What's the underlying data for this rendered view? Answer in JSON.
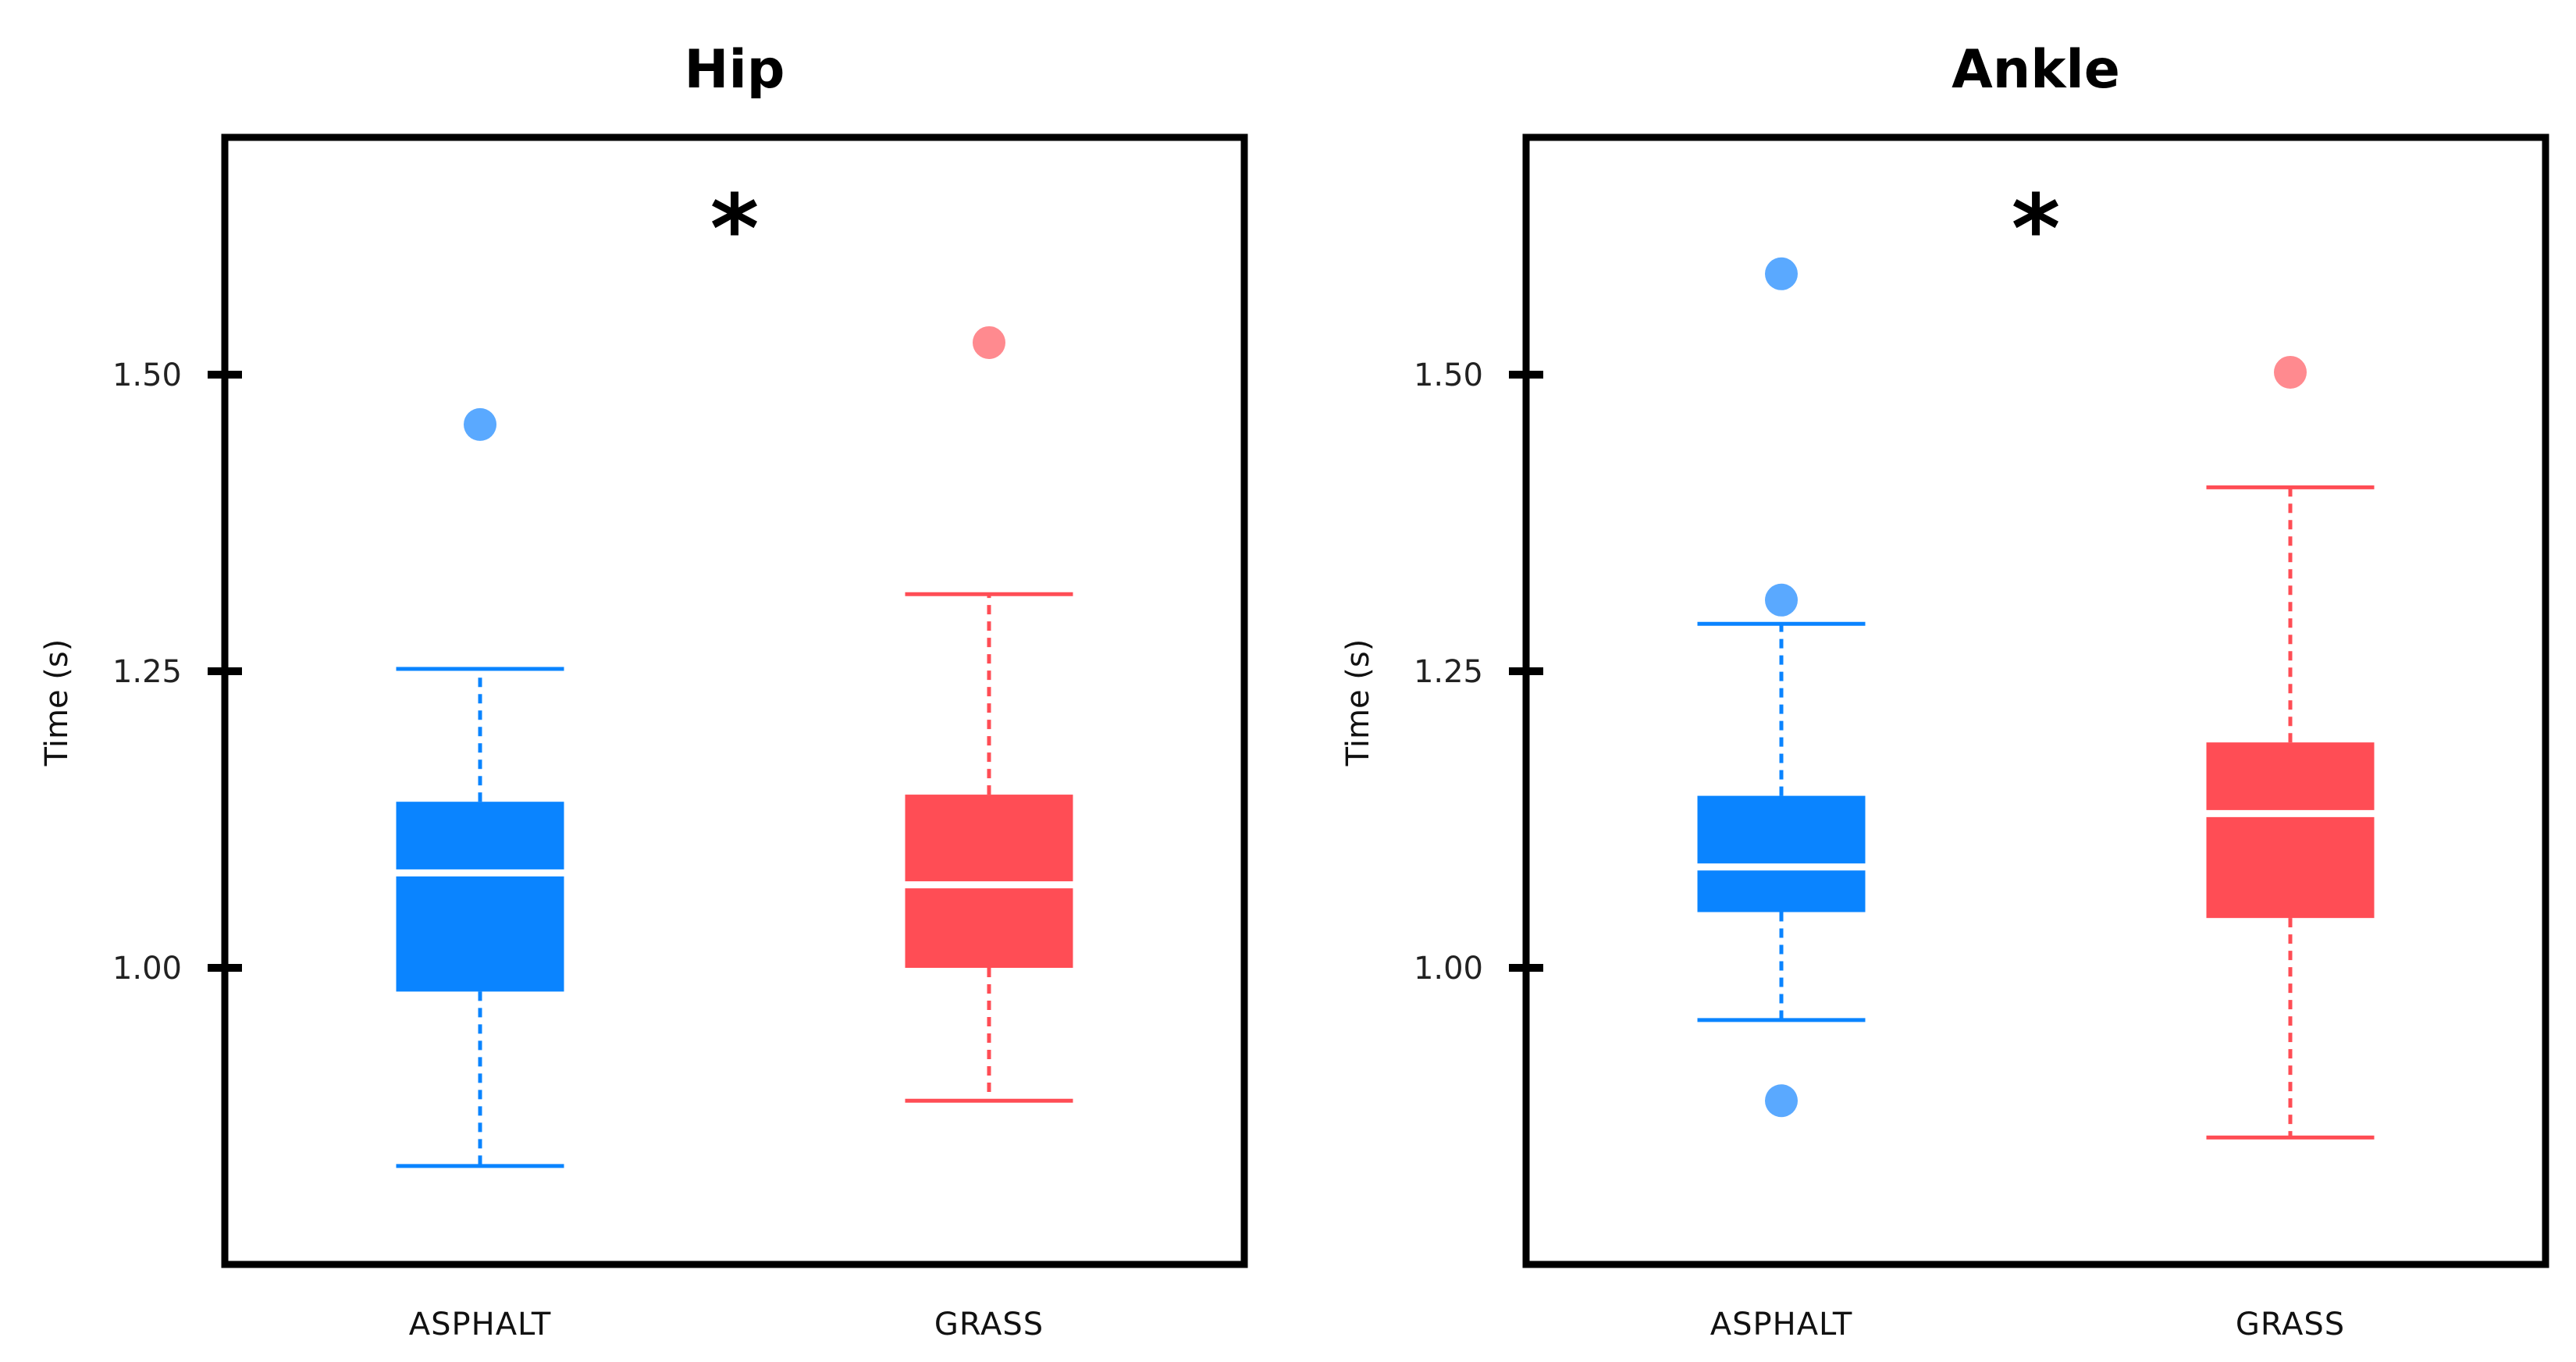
{
  "colors": {
    "ASPHALT": "#0a84ff",
    "GRASS": "#ff4d55",
    "outlier_ASPHALT": "#5aa9ff",
    "outlier_GRASS": "#ff8a8f",
    "frame": "#000000"
  },
  "chart_data": [
    {
      "type": "box",
      "title": "Hip",
      "ylabel": "Time (s)",
      "ylim": [
        0.75,
        1.7
      ],
      "yticks": [
        "1.00",
        "1.25",
        "1.50"
      ],
      "ytick_values": [
        1.0,
        1.25,
        1.5
      ],
      "significance": "*",
      "categories": [
        "ASPHALT",
        "GRASS"
      ],
      "boxes": [
        {
          "category": "ASPHALT",
          "whisker_low": 0.833,
          "q1": 0.98,
          "median": 1.08,
          "q3": 1.14,
          "whisker_high": 1.252,
          "outliers": [
            1.458
          ]
        },
        {
          "category": "GRASS",
          "whisker_low": 0.888,
          "q1": 1.0,
          "median": 1.07,
          "q3": 1.146,
          "whisker_high": 1.315,
          "outliers": [
            1.527
          ]
        }
      ],
      "grid": false
    },
    {
      "type": "box",
      "title": "Ankle",
      "ylabel": "Time (s)",
      "ylim": [
        0.75,
        1.7
      ],
      "yticks": [
        "1.00",
        "1.25",
        "1.50"
      ],
      "ytick_values": [
        1.0,
        1.25,
        1.5
      ],
      "significance": "*",
      "categories": [
        "ASPHALT",
        "GRASS"
      ],
      "boxes": [
        {
          "category": "ASPHALT",
          "whisker_low": 0.956,
          "q1": 1.047,
          "median": 1.085,
          "q3": 1.145,
          "whisker_high": 1.29,
          "outliers": [
            1.585,
            1.31,
            0.888
          ]
        },
        {
          "category": "GRASS",
          "whisker_low": 0.857,
          "q1": 1.042,
          "median": 1.13,
          "q3": 1.19,
          "whisker_high": 1.405,
          "outliers": [
            1.502
          ]
        }
      ],
      "grid": false
    }
  ]
}
